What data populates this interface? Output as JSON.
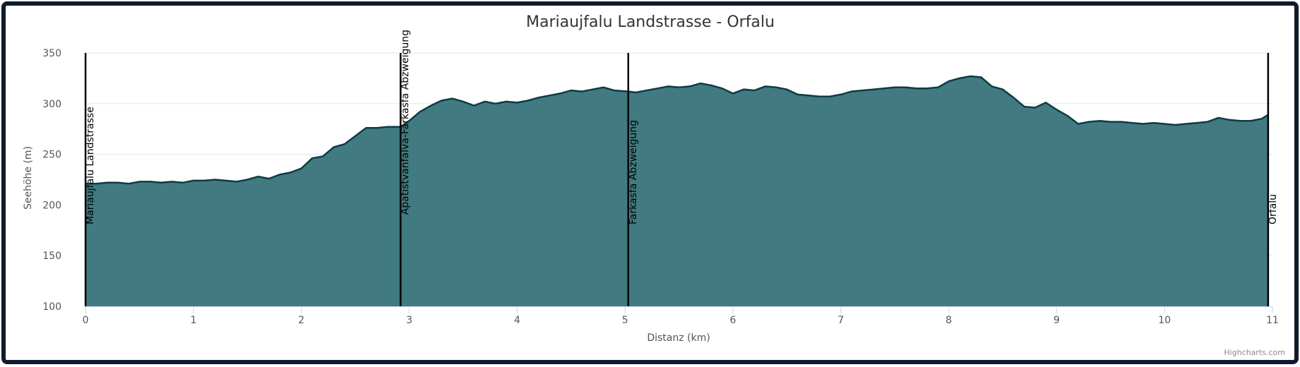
{
  "chart_data": {
    "type": "area",
    "title": "Mariaujfalu Landstrasse - Orfalu",
    "xlabel": "Distanz (km)",
    "ylabel": "Seehöhe (m)",
    "xlim": [
      0,
      11
    ],
    "ylim": [
      100,
      350
    ],
    "xticks": [
      "0",
      "1",
      "2",
      "3",
      "4",
      "5",
      "6",
      "7",
      "8",
      "9",
      "10",
      "11"
    ],
    "yticks": [
      "100",
      "150",
      "200",
      "250",
      "300",
      "350"
    ],
    "grid": "horizontal",
    "legend": "none",
    "colors": {
      "fill": "#417A80",
      "line": "#0F3B45",
      "marker": "#000000",
      "grid": "#E6E6E6"
    },
    "x": [
      0,
      0.1,
      0.2,
      0.3,
      0.4,
      0.5,
      0.6,
      0.7,
      0.8,
      0.9,
      1.0,
      1.1,
      1.2,
      1.3,
      1.4,
      1.5,
      1.6,
      1.7,
      1.8,
      1.9,
      2.0,
      2.1,
      2.2,
      2.3,
      2.4,
      2.5,
      2.6,
      2.7,
      2.8,
      2.92,
      3.0,
      3.1,
      3.2,
      3.3,
      3.4,
      3.5,
      3.6,
      3.7,
      3.8,
      3.9,
      4.0,
      4.1,
      4.2,
      4.3,
      4.4,
      4.5,
      4.6,
      4.7,
      4.8,
      4.9,
      5.03,
      5.1,
      5.2,
      5.3,
      5.4,
      5.5,
      5.6,
      5.7,
      5.8,
      5.9,
      6.0,
      6.1,
      6.2,
      6.3,
      6.4,
      6.5,
      6.6,
      6.7,
      6.8,
      6.9,
      7.0,
      7.1,
      7.2,
      7.3,
      7.4,
      7.5,
      7.6,
      7.7,
      7.8,
      7.9,
      8.0,
      8.1,
      8.2,
      8.3,
      8.4,
      8.5,
      8.6,
      8.7,
      8.8,
      8.9,
      9.0,
      9.1,
      9.2,
      9.3,
      9.4,
      9.5,
      9.6,
      9.7,
      9.8,
      9.9,
      10.0,
      10.1,
      10.2,
      10.3,
      10.4,
      10.5,
      10.6,
      10.7,
      10.8,
      10.9,
      10.96
    ],
    "y": [
      221,
      221,
      222,
      222,
      221,
      223,
      223,
      222,
      223,
      222,
      224,
      224,
      225,
      224,
      223,
      225,
      228,
      226,
      230,
      232,
      236,
      246,
      248,
      257,
      260,
      268,
      276,
      276,
      277,
      277,
      283,
      292,
      298,
      303,
      305,
      302,
      298,
      302,
      300,
      302,
      301,
      303,
      306,
      308,
      310,
      313,
      312,
      314,
      316,
      313,
      312,
      311,
      313,
      315,
      317,
      316,
      317,
      320,
      318,
      315,
      310,
      314,
      313,
      317,
      316,
      314,
      309,
      308,
      307,
      307,
      309,
      312,
      313,
      314,
      315,
      316,
      316,
      315,
      315,
      316,
      322,
      325,
      327,
      326,
      317,
      314,
      306,
      297,
      296,
      301,
      294,
      288,
      280,
      282,
      283,
      282,
      282,
      281,
      280,
      281,
      280,
      279,
      280,
      281,
      282,
      286,
      284,
      283,
      283,
      285,
      289
    ],
    "markers": [
      {
        "x": 0,
        "label": "Mariaujfalu Landstrasse"
      },
      {
        "x": 2.92,
        "label": "Apatistvanfalva-Farkasfa Abzweigung"
      },
      {
        "x": 5.03,
        "label": "Farkasfa Abzweigung"
      },
      {
        "x": 10.96,
        "label": "Orfalu"
      }
    ],
    "credit": "Highcharts.com"
  }
}
